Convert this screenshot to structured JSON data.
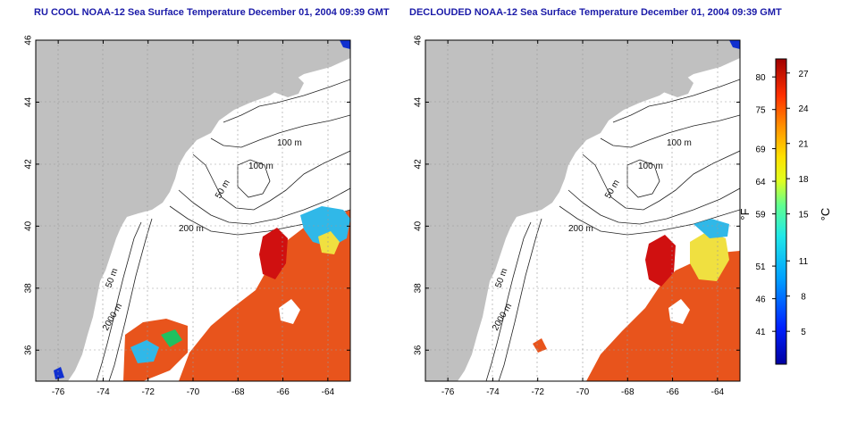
{
  "panels": [
    {
      "title": "RU COOL NOAA-12 Sea Surface Temperature December 01, 2004 09:39 GMT",
      "variant": "raw"
    },
    {
      "title": "DECLOUDED NOAA-12 Sea Surface Temperature December 01, 2004 09:39 GMT",
      "variant": "declouded"
    }
  ],
  "axes": {
    "x_ticks": [
      "-76",
      "-74",
      "-72",
      "-70",
      "-68",
      "-66",
      "-64"
    ],
    "y_ticks": [
      "46",
      "44",
      "42",
      "40",
      "38",
      "36"
    ],
    "lon_range": [
      -77,
      -63
    ],
    "lat_range": [
      35,
      46
    ]
  },
  "contour_labels": {
    "c100a": "100 m",
    "c100b": "100 m",
    "c50a": "50 m",
    "c200": "200 m",
    "c50b": "50 m",
    "c2000": "2000 m"
  },
  "colorbar": {
    "f_label": "°F",
    "c_label": "°C",
    "f_ticks": [
      "80",
      "75",
      "69",
      "64",
      "59",
      "51",
      "46",
      "41"
    ],
    "c_ticks": [
      "27",
      "24",
      "21",
      "18",
      "15",
      "11",
      "8",
      "5"
    ]
  },
  "colors": {
    "land": "#c0c0c0",
    "ocean": "#ffffff",
    "title": "#1a1aa8",
    "sst_warm": "#e8541c",
    "sst_hot": "#d01010",
    "sst_cool": "#30b8e8",
    "sst_yellow": "#f0e040"
  }
}
